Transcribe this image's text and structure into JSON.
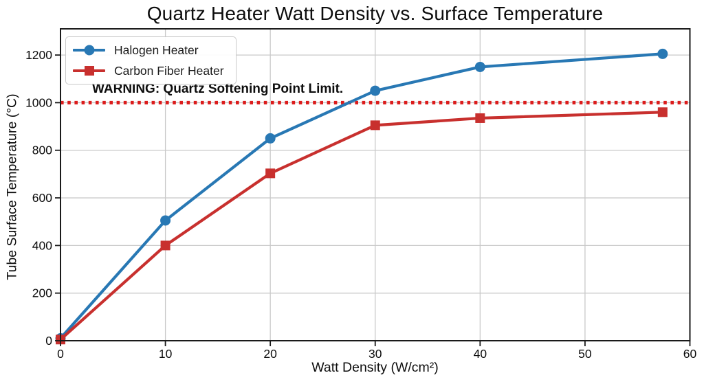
{
  "title": "Quartz Heater Watt Density vs. Surface Temperature",
  "warning": "WARNING: Quartz Softening Point Limit.",
  "chart_data": {
    "type": "line",
    "title": "Quartz Heater Watt Density vs. Surface Temperature",
    "xlabel": "Watt Density (W/cm²)",
    "ylabel": "Tube Surface Temperature (°C)",
    "xlim": [
      0,
      60
    ],
    "ylim": [
      0,
      1310
    ],
    "x_ticks": [
      0,
      10,
      20,
      30,
      40,
      50,
      60
    ],
    "y_ticks": [
      0,
      200,
      400,
      600,
      800,
      1000,
      1200
    ],
    "grid": true,
    "legend_position": "upper-left",
    "series": [
      {
        "name": "Halogen Heater",
        "color": "#2878b4",
        "marker": "circle",
        "x": [
          0,
          10,
          20,
          30,
          40,
          57.4
        ],
        "values": [
          10,
          505,
          850,
          1050,
          1150,
          1205
        ]
      },
      {
        "name": "Carbon Fiber Heater",
        "color": "#c8302e",
        "marker": "square",
        "x": [
          0,
          10,
          20,
          30,
          40,
          57.4
        ],
        "values": [
          5,
          400,
          703,
          905,
          935,
          960
        ]
      }
    ],
    "threshold_line": {
      "value": 1000,
      "color": "#dc1c1c",
      "style": "dotted",
      "label": "WARNING: Quartz Softening Point Limit."
    },
    "colors": {
      "grid": "#c9c9c9",
      "spine": "#1a1a1a",
      "text": "#0d0d0d",
      "background": "#ffffff"
    }
  }
}
